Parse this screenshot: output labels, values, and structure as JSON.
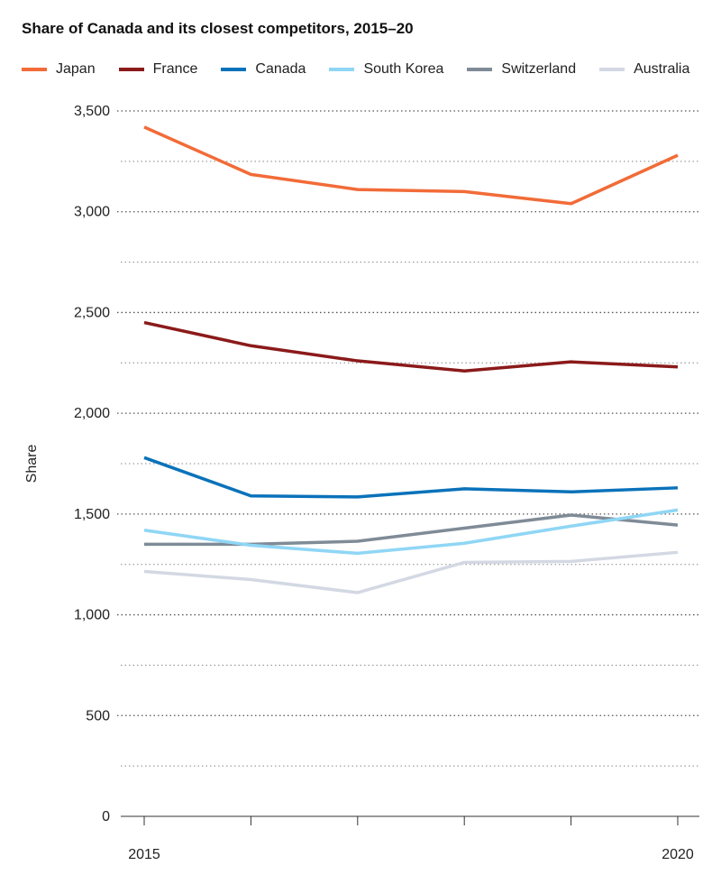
{
  "chart_data": {
    "type": "line",
    "title": "Share of Canada and its closest competitors, 2015–20",
    "xlabel": "",
    "ylabel": "Share",
    "x": [
      2015,
      2016,
      2017,
      2018,
      2019,
      2020
    ],
    "x_tick_labels": [
      "2015",
      "",
      "",
      "",
      "",
      "2020"
    ],
    "ylim": [
      0,
      3500
    ],
    "y_ticks": [
      0,
      500,
      1000,
      1500,
      2000,
      2500,
      3000,
      3500
    ],
    "y_tick_labels": [
      "0",
      "500",
      "1,000",
      "1,500",
      "2,000",
      "2,500",
      "3,000",
      "3,500"
    ],
    "grid": "dotted horizontal",
    "legend": "top",
    "series": [
      {
        "name": "Japan",
        "color": "#f26b38",
        "values": [
          3420,
          3185,
          3110,
          3100,
          3040,
          3280
        ]
      },
      {
        "name": "France",
        "color": "#8b1a1a",
        "values": [
          2450,
          2335,
          2260,
          2210,
          2255,
          2230
        ]
      },
      {
        "name": "Canada",
        "color": "#0a72ba",
        "values": [
          1780,
          1590,
          1585,
          1625,
          1610,
          1630
        ]
      },
      {
        "name": "South Korea",
        "color": "#8fd6f5",
        "values": [
          1420,
          1345,
          1305,
          1355,
          1440,
          1520
        ]
      },
      {
        "name": "Switzerland",
        "color": "#7f8b96",
        "values": [
          1350,
          1350,
          1365,
          1430,
          1495,
          1445
        ]
      },
      {
        "name": "Australia",
        "color": "#d3d8e3",
        "values": [
          1215,
          1175,
          1110,
          1260,
          1265,
          1310
        ]
      }
    ]
  }
}
